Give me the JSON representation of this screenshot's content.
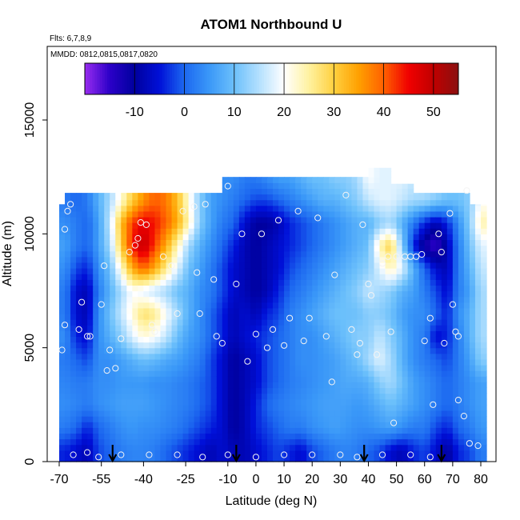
{
  "chart_data": {
    "type": "heatmap",
    "title": "ATOM1 Northbound U",
    "annotations": {
      "flights": "Flts: 6,7,8,9",
      "dates": "MMDD: 0812,0815,0817,0820"
    },
    "xlabel": "Latitude (deg N)",
    "ylabel": "Altitude (m)",
    "xlim": [
      -70,
      85
    ],
    "ylim": [
      0,
      18000
    ],
    "xticks": [
      {
        "value": -70,
        "label": "-70"
      },
      {
        "value": -55,
        "label": "-55"
      },
      {
        "value": -40,
        "label": "-40"
      },
      {
        "value": -25,
        "label": "-25"
      },
      {
        "value": -10,
        "label": "-10"
      },
      {
        "value": 0,
        "label": "0"
      },
      {
        "value": 10,
        "label": "10"
      },
      {
        "value": 20,
        "label": "20"
      },
      {
        "value": 30,
        "label": "30"
      },
      {
        "value": 40,
        "label": "40"
      },
      {
        "value": 50,
        "label": "50"
      },
      {
        "value": 60,
        "label": "60"
      },
      {
        "value": 70,
        "label": "70"
      },
      {
        "value": 80,
        "label": "80"
      }
    ],
    "yticks": [
      {
        "value": 0,
        "label": "0"
      },
      {
        "value": 5000,
        "label": "5000"
      },
      {
        "value": 10000,
        "label": "10000"
      },
      {
        "value": 15000,
        "label": "15000"
      }
    ],
    "colorbar": {
      "range": [
        -20,
        55
      ],
      "ticks": [
        {
          "value": -10,
          "label": "-10"
        },
        {
          "value": 0,
          "label": "0"
        },
        {
          "value": 10,
          "label": "10"
        },
        {
          "value": 20,
          "label": "20"
        },
        {
          "value": 30,
          "label": "30"
        },
        {
          "value": 40,
          "label": "40"
        },
        {
          "value": 50,
          "label": "50"
        }
      ],
      "stops": [
        {
          "value": -20,
          "color": "#9a2cf0"
        },
        {
          "value": -15,
          "color": "#2b00c8"
        },
        {
          "value": -10,
          "color": "#00009e"
        },
        {
          "value": -5,
          "color": "#0010d8"
        },
        {
          "value": 0,
          "color": "#1c68f0"
        },
        {
          "value": 5,
          "color": "#3a98f8"
        },
        {
          "value": 10,
          "color": "#6cc0fb"
        },
        {
          "value": 15,
          "color": "#b4e0fe"
        },
        {
          "value": 20,
          "color": "#ffffff"
        },
        {
          "value": 25,
          "color": "#fff2a0"
        },
        {
          "value": 30,
          "color": "#ffd040"
        },
        {
          "value": 35,
          "color": "#ffa000"
        },
        {
          "value": 40,
          "color": "#ff6000"
        },
        {
          "value": 45,
          "color": "#f00000"
        },
        {
          "value": 50,
          "color": "#c00000"
        },
        {
          "value": 55,
          "color": "#8a1010"
        }
      ]
    },
    "grid": false,
    "legend": "top (horizontal colorbar inside plot)",
    "field": {
      "lat_bins": [
        -68,
        -64,
        -60,
        -56,
        -52,
        -48,
        -44,
        -40,
        -36,
        -32,
        -28,
        -24,
        -20,
        -16,
        -12,
        -8,
        -4,
        0,
        4,
        8,
        12,
        16,
        20,
        24,
        28,
        32,
        36,
        40,
        44,
        48,
        52,
        56,
        60,
        64,
        68,
        72,
        76,
        80
      ],
      "alt_bins": [
        500,
        1500,
        2500,
        3500,
        4500,
        5500,
        6500,
        7500,
        8500,
        9500,
        10500,
        11500,
        12500
      ],
      "u": [
        [
          -4,
          -6,
          -8,
          -2,
          0,
          2,
          3,
          3,
          2,
          0,
          -2,
          -4,
          -6,
          -8,
          -6,
          -8,
          -8,
          -6,
          -4,
          -2,
          -4,
          -6,
          -2,
          0,
          2,
          3,
          2,
          0,
          -2,
          -6,
          -8,
          -4,
          -2,
          -6,
          -10,
          -4,
          -2,
          2
        ],
        [
          2,
          0,
          -4,
          0,
          2,
          4,
          5,
          4,
          4,
          3,
          2,
          0,
          -2,
          -4,
          -6,
          -10,
          -8,
          -4,
          -2,
          0,
          2,
          2,
          4,
          5,
          6,
          5,
          4,
          4,
          5,
          6,
          4,
          2,
          2,
          -2,
          -4,
          0,
          2,
          5
        ],
        [
          4,
          3,
          2,
          4,
          5,
          6,
          6,
          6,
          5,
          4,
          3,
          2,
          0,
          -2,
          -6,
          -10,
          -8,
          -4,
          0,
          2,
          3,
          4,
          5,
          6,
          6,
          6,
          5,
          6,
          8,
          10,
          8,
          6,
          4,
          2,
          0,
          2,
          4,
          6
        ],
        [
          3,
          2,
          2,
          4,
          4,
          5,
          5,
          5,
          4,
          4,
          3,
          2,
          0,
          -2,
          -6,
          -10,
          -8,
          -6,
          -2,
          0,
          2,
          3,
          4,
          5,
          6,
          7,
          7,
          8,
          12,
          14,
          10,
          6,
          4,
          2,
          0,
          2,
          4,
          6
        ],
        [
          2,
          0,
          -2,
          4,
          4,
          6,
          8,
          10,
          9,
          7,
          6,
          4,
          2,
          -2,
          -6,
          -10,
          -8,
          -6,
          -2,
          0,
          2,
          4,
          4,
          5,
          6,
          8,
          10,
          14,
          18,
          14,
          8,
          4,
          2,
          0,
          -2,
          2,
          6,
          12
        ],
        [
          4,
          -4,
          -6,
          4,
          8,
          12,
          18,
          22,
          20,
          16,
          10,
          6,
          4,
          0,
          -4,
          -8,
          -6,
          -4,
          -2,
          0,
          2,
          4,
          4,
          6,
          8,
          10,
          12,
          12,
          16,
          12,
          8,
          4,
          2,
          -6,
          -4,
          2,
          8,
          14
        ],
        [
          2,
          -6,
          -8,
          4,
          10,
          16,
          22,
          28,
          26,
          20,
          14,
          8,
          4,
          0,
          -4,
          -8,
          -6,
          -8,
          -4,
          -2,
          2,
          4,
          6,
          8,
          10,
          10,
          10,
          12,
          12,
          10,
          6,
          4,
          4,
          0,
          -4,
          4,
          8,
          14
        ],
        [
          2,
          -6,
          -8,
          2,
          8,
          14,
          20,
          18,
          16,
          14,
          10,
          8,
          4,
          2,
          -2,
          -6,
          -8,
          -10,
          -8,
          -4,
          0,
          2,
          4,
          6,
          8,
          10,
          12,
          16,
          14,
          12,
          8,
          6,
          2,
          -2,
          -6,
          2,
          6,
          14
        ],
        [
          4,
          -2,
          -4,
          4,
          10,
          22,
          34,
          40,
          34,
          26,
          18,
          10,
          6,
          2,
          -2,
          -6,
          -8,
          -10,
          -8,
          -6,
          -2,
          0,
          2,
          4,
          6,
          8,
          10,
          12,
          18,
          24,
          18,
          8,
          0,
          -6,
          -8,
          2,
          8,
          16
        ],
        [
          6,
          2,
          0,
          6,
          14,
          30,
          44,
          50,
          42,
          34,
          24,
          14,
          8,
          4,
          0,
          -4,
          -8,
          -10,
          -8,
          -6,
          -4,
          -2,
          0,
          2,
          4,
          6,
          8,
          10,
          24,
          30,
          12,
          -4,
          -12,
          -16,
          -8,
          2,
          10,
          18
        ],
        [
          4,
          2,
          0,
          6,
          16,
          32,
          42,
          46,
          44,
          40,
          34,
          24,
          12,
          6,
          2,
          0,
          -6,
          -10,
          -10,
          -8,
          -4,
          -2,
          0,
          2,
          4,
          6,
          8,
          8,
          12,
          14,
          8,
          2,
          -4,
          -8,
          -4,
          4,
          12,
          24
        ],
        [
          2,
          0,
          2,
          8,
          14,
          22,
          30,
          36,
          40,
          38,
          32,
          22,
          12,
          6,
          4,
          2,
          0,
          -2,
          -2,
          0,
          2,
          4,
          6,
          8,
          8,
          10,
          12,
          16,
          18,
          18,
          16,
          14,
          14,
          12,
          10,
          10,
          12,
          20
        ],
        [
          null,
          null,
          null,
          null,
          null,
          null,
          null,
          null,
          null,
          null,
          null,
          null,
          null,
          null,
          4,
          4,
          2,
          2,
          4,
          6,
          6,
          8,
          10,
          10,
          12,
          12,
          14,
          20,
          18,
          18,
          18,
          16,
          null,
          null,
          null,
          null,
          null,
          null
        ]
      ],
      "ceiling": [
        {
          "from": -68,
          "to": -12,
          "alt": 11800
        },
        {
          "from": -12,
          "to": 40,
          "alt": 12500
        },
        {
          "from": 40,
          "to": 48,
          "alt": 12900
        },
        {
          "from": 48,
          "to": 56,
          "alt": 12200
        },
        {
          "from": 56,
          "to": 76,
          "alt": 11800
        },
        {
          "from": 76,
          "to": 80,
          "alt": 11300
        }
      ]
    },
    "observation_points": [
      {
        "lat": -68,
        "alt": 10200
      },
      {
        "lat": -67,
        "alt": 11000
      },
      {
        "lat": -66,
        "alt": 11300
      },
      {
        "lat": -68,
        "alt": 6000
      },
      {
        "lat": -69,
        "alt": 4900
      },
      {
        "lat": -62,
        "alt": 7000
      },
      {
        "lat": -63,
        "alt": 5800
      },
      {
        "lat": -60,
        "alt": 5500
      },
      {
        "lat": -59,
        "alt": 5500
      },
      {
        "lat": -55,
        "alt": 6900
      },
      {
        "lat": -54,
        "alt": 8600
      },
      {
        "lat": -52,
        "alt": 4900
      },
      {
        "lat": -53,
        "alt": 4000
      },
      {
        "lat": -50,
        "alt": 4100
      },
      {
        "lat": -48,
        "alt": 5400
      },
      {
        "lat": -45,
        "alt": 9200
      },
      {
        "lat": -43,
        "alt": 9500
      },
      {
        "lat": -42,
        "alt": 9800
      },
      {
        "lat": -41,
        "alt": 10500
      },
      {
        "lat": -39,
        "alt": 10400
      },
      {
        "lat": -37,
        "alt": 6000
      },
      {
        "lat": -36,
        "alt": 5700
      },
      {
        "lat": -33,
        "alt": 9000
      },
      {
        "lat": -30,
        "alt": 8600
      },
      {
        "lat": -28,
        "alt": 6500
      },
      {
        "lat": -26,
        "alt": 11000
      },
      {
        "lat": -22,
        "alt": 11200
      },
      {
        "lat": -21,
        "alt": 8300
      },
      {
        "lat": -20,
        "alt": 6500
      },
      {
        "lat": -18,
        "alt": 11300
      },
      {
        "lat": -15,
        "alt": 8000
      },
      {
        "lat": -14,
        "alt": 5500
      },
      {
        "lat": -12,
        "alt": 5200
      },
      {
        "lat": -10,
        "alt": 12100
      },
      {
        "lat": -7,
        "alt": 7800
      },
      {
        "lat": -5,
        "alt": 10000
      },
      {
        "lat": -3,
        "alt": 4400
      },
      {
        "lat": 0,
        "alt": 5600
      },
      {
        "lat": 2,
        "alt": 10000
      },
      {
        "lat": 4,
        "alt": 5000
      },
      {
        "lat": 6,
        "alt": 5800
      },
      {
        "lat": 8,
        "alt": 10600
      },
      {
        "lat": 10,
        "alt": 5100
      },
      {
        "lat": 12,
        "alt": 6300
      },
      {
        "lat": 15,
        "alt": 11000
      },
      {
        "lat": 17,
        "alt": 5300
      },
      {
        "lat": 19,
        "alt": 6300
      },
      {
        "lat": 22,
        "alt": 10700
      },
      {
        "lat": 25,
        "alt": 5500
      },
      {
        "lat": 27,
        "alt": 3500
      },
      {
        "lat": 28,
        "alt": 8200
      },
      {
        "lat": 32,
        "alt": 11700
      },
      {
        "lat": 34,
        "alt": 5800
      },
      {
        "lat": 36,
        "alt": 4700
      },
      {
        "lat": 37,
        "alt": 5200
      },
      {
        "lat": 38,
        "alt": 10400
      },
      {
        "lat": 40,
        "alt": 7800
      },
      {
        "lat": 41,
        "alt": 7300
      },
      {
        "lat": 43,
        "alt": 4700
      },
      {
        "lat": 45,
        "alt": 8700
      },
      {
        "lat": 47,
        "alt": 9000
      },
      {
        "lat": 48,
        "alt": 5700
      },
      {
        "lat": 49,
        "alt": 1700
      },
      {
        "lat": 50,
        "alt": 9000
      },
      {
        "lat": 53,
        "alt": 9000
      },
      {
        "lat": 55,
        "alt": 9000
      },
      {
        "lat": 57,
        "alt": 9000
      },
      {
        "lat": 59,
        "alt": 9100
      },
      {
        "lat": 60,
        "alt": 5300
      },
      {
        "lat": 62,
        "alt": 6300
      },
      {
        "lat": 63,
        "alt": 2500
      },
      {
        "lat": 65,
        "alt": 10000
      },
      {
        "lat": 66,
        "alt": 9200
      },
      {
        "lat": 67,
        "alt": 5200
      },
      {
        "lat": 69,
        "alt": 10900
      },
      {
        "lat": 70,
        "alt": 6900
      },
      {
        "lat": 71,
        "alt": 5700
      },
      {
        "lat": 72,
        "alt": 5500
      },
      {
        "lat": 72,
        "alt": 2700
      },
      {
        "lat": 74,
        "alt": 2000
      },
      {
        "lat": 75,
        "alt": 11900
      },
      {
        "lat": 76,
        "alt": 800
      },
      {
        "lat": 79,
        "alt": 700
      },
      {
        "lat": -65,
        "alt": 300
      },
      {
        "lat": -60,
        "alt": 400
      },
      {
        "lat": -56,
        "alt": 200
      },
      {
        "lat": -48,
        "alt": 300
      },
      {
        "lat": -38,
        "alt": 300
      },
      {
        "lat": -28,
        "alt": 300
      },
      {
        "lat": -19,
        "alt": 200
      },
      {
        "lat": -10,
        "alt": 300
      },
      {
        "lat": 0,
        "alt": 200
      },
      {
        "lat": 10,
        "alt": 300
      },
      {
        "lat": 20,
        "alt": 300
      },
      {
        "lat": 30,
        "alt": 300
      },
      {
        "lat": 36,
        "alt": 200
      },
      {
        "lat": 45,
        "alt": 300
      },
      {
        "lat": 55,
        "alt": 300
      },
      {
        "lat": 62,
        "alt": 200
      }
    ],
    "arrow_markers": [
      {
        "lat": -51
      },
      {
        "lat": -7
      },
      {
        "lat": 38.5
      },
      {
        "lat": 66
      }
    ]
  }
}
